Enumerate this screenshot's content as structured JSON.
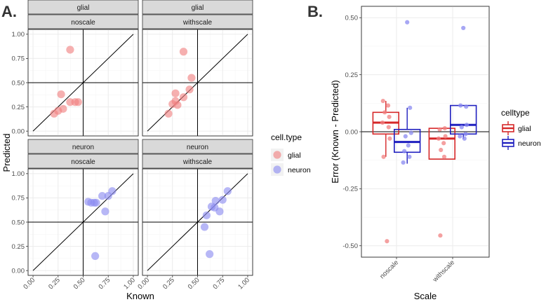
{
  "figure": {
    "panel_a_tag": "A.",
    "panel_b_tag": "B."
  },
  "colors": {
    "glial": "#F08080",
    "neuron": "#8A8AF0",
    "box_glial": "#D62728",
    "box_neuron": "#1F1FBF"
  },
  "chart_data": [
    {
      "type": "scatter",
      "id": "panel_a",
      "xlabel": "Known",
      "ylabel": "Predicted",
      "xlim": [
        0,
        1
      ],
      "ylim": [
        0,
        1
      ],
      "ticks": [
        "0.00",
        "0.25",
        "0.50",
        "0.75",
        "1.00"
      ],
      "tick_values": [
        0,
        0.25,
        0.5,
        0.75,
        1.0
      ],
      "reference_lines": {
        "diagonal": true,
        "h": 0.5,
        "v": 0.5
      },
      "legend": {
        "title": "cell.type",
        "entries": [
          {
            "label": "glial",
            "color_key": "glial"
          },
          {
            "label": "neuron",
            "color_key": "neuron"
          }
        ]
      },
      "facets": [
        {
          "strip_top": "glial",
          "strip_bottom": "noscale",
          "row": 0,
          "col": 0,
          "color_key": "glial",
          "points": [
            {
              "x": 0.37,
              "y": 0.84
            },
            {
              "x": 0.28,
              "y": 0.38
            },
            {
              "x": 0.37,
              "y": 0.3
            },
            {
              "x": 0.42,
              "y": 0.3
            },
            {
              "x": 0.45,
              "y": 0.3
            },
            {
              "x": 0.3,
              "y": 0.23
            },
            {
              "x": 0.25,
              "y": 0.21
            },
            {
              "x": 0.21,
              "y": 0.18
            }
          ]
        },
        {
          "strip_top": "glial",
          "strip_bottom": "withscale",
          "row": 0,
          "col": 1,
          "color_key": "glial",
          "points": [
            {
              "x": 0.36,
              "y": 0.82
            },
            {
              "x": 0.44,
              "y": 0.55
            },
            {
              "x": 0.42,
              "y": 0.43
            },
            {
              "x": 0.28,
              "y": 0.39
            },
            {
              "x": 0.36,
              "y": 0.35
            },
            {
              "x": 0.28,
              "y": 0.31
            },
            {
              "x": 0.25,
              "y": 0.28
            },
            {
              "x": 0.3,
              "y": 0.27
            },
            {
              "x": 0.21,
              "y": 0.18
            }
          ]
        },
        {
          "strip_top": "neuron",
          "strip_bottom": "noscale",
          "row": 1,
          "col": 0,
          "color_key": "neuron",
          "points": [
            {
              "x": 0.79,
              "y": 0.82
            },
            {
              "x": 0.69,
              "y": 0.77
            },
            {
              "x": 0.75,
              "y": 0.77
            },
            {
              "x": 0.55,
              "y": 0.71
            },
            {
              "x": 0.58,
              "y": 0.7
            },
            {
              "x": 0.61,
              "y": 0.7
            },
            {
              "x": 0.63,
              "y": 0.7
            },
            {
              "x": 0.72,
              "y": 0.61
            },
            {
              "x": 0.62,
              "y": 0.15
            }
          ]
        },
        {
          "strip_top": "neuron",
          "strip_bottom": "withscale",
          "row": 1,
          "col": 1,
          "color_key": "neuron",
          "points": [
            {
              "x": 0.8,
              "y": 0.82
            },
            {
              "x": 0.75,
              "y": 0.73
            },
            {
              "x": 0.68,
              "y": 0.72
            },
            {
              "x": 0.64,
              "y": 0.66
            },
            {
              "x": 0.67,
              "y": 0.65
            },
            {
              "x": 0.72,
              "y": 0.61
            },
            {
              "x": 0.59,
              "y": 0.57
            },
            {
              "x": 0.57,
              "y": 0.45
            },
            {
              "x": 0.62,
              "y": 0.17
            }
          ]
        }
      ]
    },
    {
      "type": "box",
      "id": "panel_b",
      "xlabel": "Scale",
      "ylabel": "Error (Known - Predicted)",
      "categories": [
        "noscale",
        "withscale"
      ],
      "ylim": [
        -0.55,
        0.55
      ],
      "yticks": [
        "-0.50",
        "-0.25",
        "0.00",
        "0.25",
        "0.50"
      ],
      "ytick_values": [
        -0.5,
        -0.25,
        0,
        0.25,
        0.5
      ],
      "zero_line": 0,
      "legend": {
        "title": "celltype",
        "entries": [
          {
            "label": "glial",
            "color_key": "box_glial"
          },
          {
            "label": "neuron",
            "color_key": "box_neuron"
          }
        ]
      },
      "groups": [
        {
          "category": "noscale",
          "celltype": "glial",
          "color_key": "box_glial",
          "point_color_key": "glial",
          "offset": -0.19,
          "box": {
            "q1": -0.01,
            "median": 0.04,
            "q3": 0.085,
            "whisker_low": -0.11,
            "whisker_high": 0.135
          },
          "points": [
            0.135,
            0.115,
            0.085,
            0.065,
            0.04,
            0.02,
            -0.03,
            -0.11,
            -0.48
          ],
          "jitter": [
            -0.05,
            0.04,
            -0.02,
            0.06,
            -0.06,
            0.05,
            0.07,
            -0.04,
            0.02
          ]
        },
        {
          "category": "noscale",
          "celltype": "neuron",
          "color_key": "box_neuron",
          "point_color_key": "neuron",
          "offset": 0.19,
          "box": {
            "q1": -0.09,
            "median": -0.045,
            "q3": 0.01,
            "whisker_low": -0.14,
            "whisker_high": 0.105
          },
          "points": [
            0.48,
            0.105,
            -0.005,
            -0.02,
            -0.06,
            -0.085,
            -0.11,
            -0.135
          ],
          "jitter": [
            0.0,
            0.05,
            0.07,
            -0.03,
            0.02,
            -0.05,
            0.04,
            -0.07
          ]
        },
        {
          "category": "withscale",
          "celltype": "glial",
          "color_key": "box_glial",
          "point_color_key": "glial",
          "offset": -0.19,
          "box": {
            "q1": -0.12,
            "median": -0.03,
            "q3": 0.015,
            "whisker_low": -0.12,
            "whisker_high": 0.015
          },
          "points": [
            0.015,
            0.01,
            -0.02,
            -0.03,
            -0.05,
            -0.08,
            -0.11,
            -0.455
          ],
          "jitter": [
            0.05,
            -0.04,
            0.06,
            -0.06,
            0.03,
            -0.02,
            0.04,
            -0.03
          ]
        },
        {
          "category": "withscale",
          "celltype": "neuron",
          "color_key": "box_neuron",
          "point_color_key": "neuron",
          "offset": 0.19,
          "box": {
            "q1": -0.01,
            "median": 0.03,
            "q3": 0.115,
            "whisker_low": -0.03,
            "whisker_high": 0.115
          },
          "points": [
            0.455,
            0.115,
            0.11,
            0.03,
            0.02,
            -0.01,
            -0.02,
            -0.03
          ],
          "jitter": [
            0.0,
            -0.05,
            0.05,
            0.06,
            -0.03,
            0.04,
            -0.06,
            0.02
          ]
        }
      ]
    }
  ]
}
